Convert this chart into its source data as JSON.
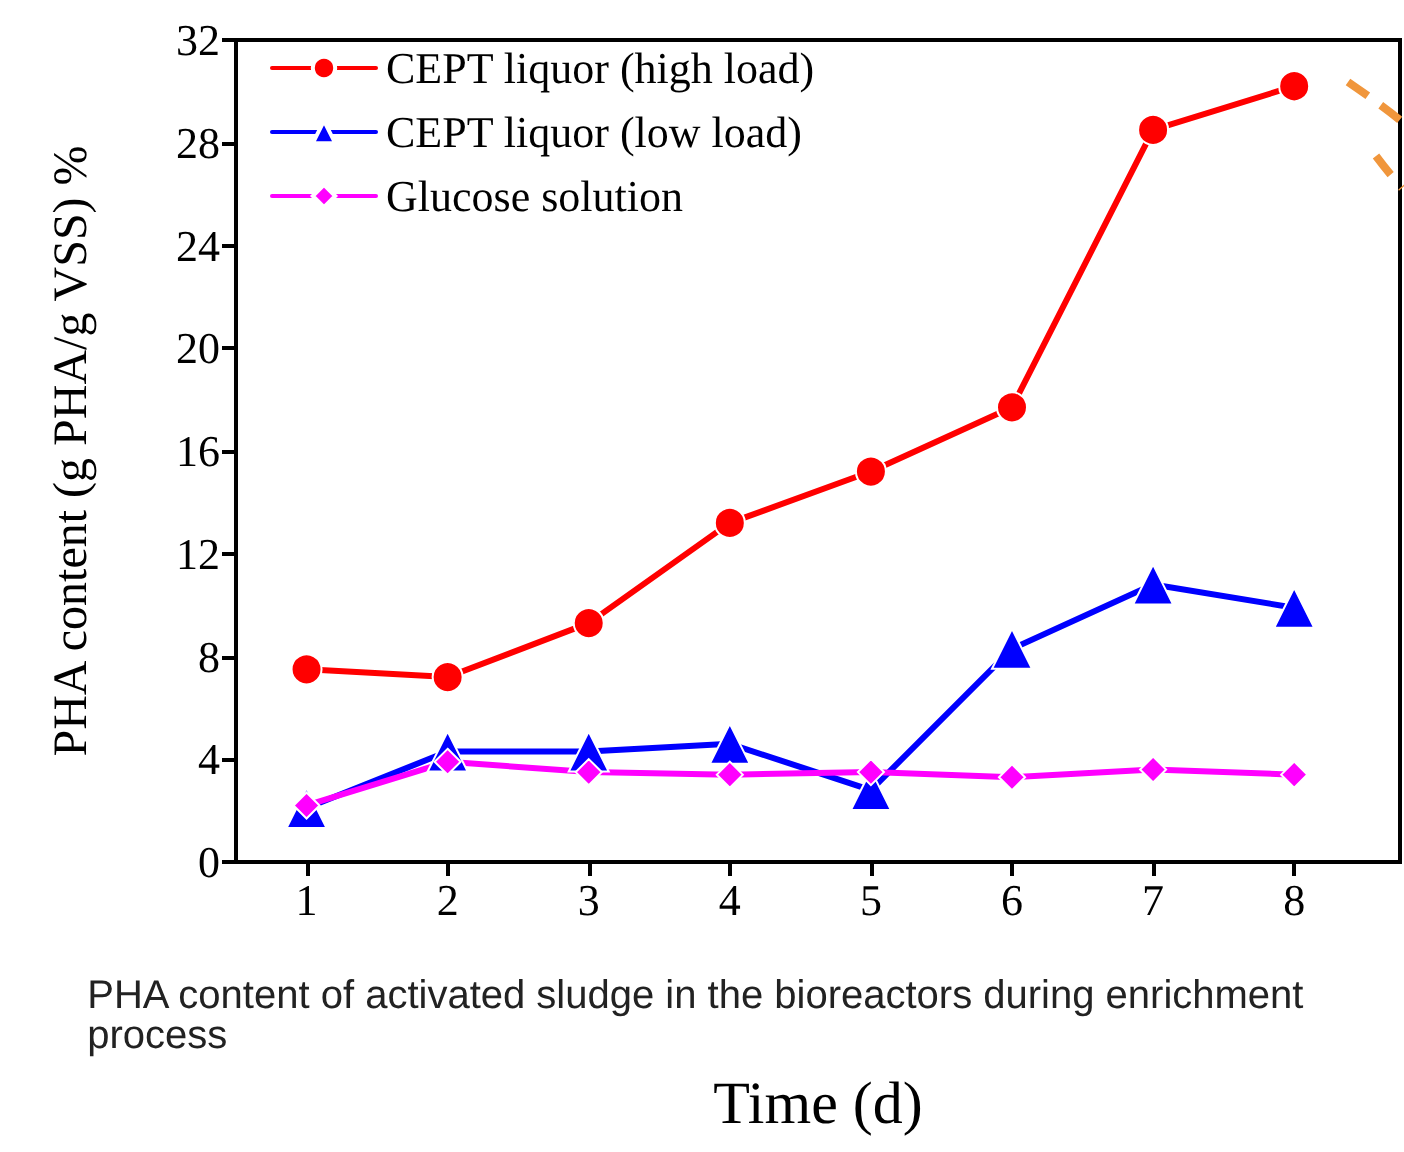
{
  "chart_data": {
    "type": "line",
    "xlabel": "Time (d)",
    "ylabel": "PHA content (g PHA/g VSS) %",
    "annotations": [
      "PHA content of activated sludge in the bioreactors during enrichment process"
    ],
    "x": [
      1,
      2,
      3,
      4,
      5,
      6,
      7,
      8
    ],
    "xlim": [
      0.5,
      8.75
    ],
    "xticks": [
      1,
      2,
      3,
      4,
      5,
      6,
      7,
      8
    ],
    "ylim": [
      0,
      32
    ],
    "yticks": [
      0,
      4,
      8,
      12,
      16,
      20,
      24,
      28,
      32
    ],
    "legend": "top left",
    "grid": false,
    "series": [
      {
        "name": "CEPT liquor (high load)",
        "color": "#ff0000",
        "marker": "circle",
        "values": [
          7.5,
          7.2,
          9.3,
          13.2,
          15.2,
          17.7,
          28.5,
          30.2
        ]
      },
      {
        "name": "CEPT liquor (low load)",
        "color": "#0000ff",
        "marker": "triangle",
        "values": [
          2.1,
          4.3,
          4.3,
          4.6,
          2.8,
          8.3,
          10.8,
          9.9
        ]
      },
      {
        "name": "Glucose solution",
        "color": "#ff00ff",
        "marker": "diamond",
        "values": [
          2.2,
          3.9,
          3.5,
          3.4,
          3.5,
          3.3,
          3.6,
          3.4
        ]
      }
    ]
  }
}
